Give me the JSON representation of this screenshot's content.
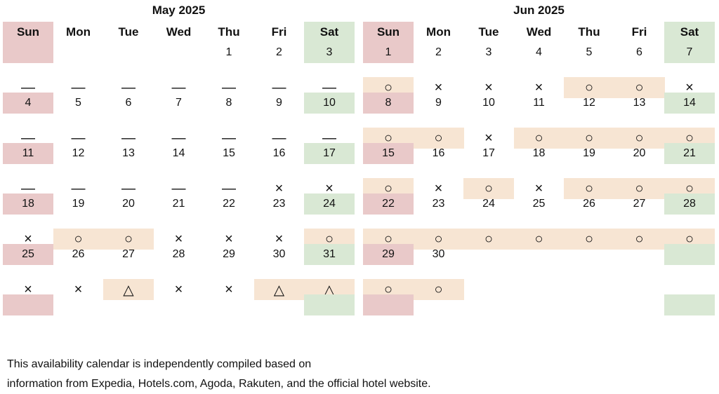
{
  "weekdays": [
    "Sun",
    "Mon",
    "Tue",
    "Wed",
    "Thu",
    "Fri",
    "Sat"
  ],
  "months": [
    {
      "title": "May 2025",
      "weeks": [
        {
          "days": [
            "",
            "",
            "",
            "",
            "1",
            "2",
            "3"
          ],
          "marks": [
            "—",
            "—",
            "—",
            "—",
            "—",
            "—",
            "—"
          ]
        },
        {
          "days": [
            "4",
            "5",
            "6",
            "7",
            "8",
            "9",
            "10"
          ],
          "marks": [
            "—",
            "—",
            "—",
            "—",
            "—",
            "—",
            "—"
          ]
        },
        {
          "days": [
            "11",
            "12",
            "13",
            "14",
            "15",
            "16",
            "17"
          ],
          "marks": [
            "—",
            "—",
            "—",
            "—",
            "—",
            "×",
            "×"
          ]
        },
        {
          "days": [
            "18",
            "19",
            "20",
            "21",
            "22",
            "23",
            "24"
          ],
          "marks": [
            "×",
            "○",
            "○",
            "×",
            "×",
            "×",
            "○"
          ]
        },
        {
          "days": [
            "25",
            "26",
            "27",
            "28",
            "29",
            "30",
            "31"
          ],
          "marks": [
            "×",
            "×",
            "△",
            "×",
            "×",
            "△",
            "△"
          ]
        }
      ]
    },
    {
      "title": "Jun 2025",
      "weeks": [
        {
          "days": [
            "1",
            "2",
            "3",
            "4",
            "5",
            "6",
            "7"
          ],
          "marks": [
            "○",
            "×",
            "×",
            "×",
            "○",
            "○",
            "×"
          ]
        },
        {
          "days": [
            "8",
            "9",
            "10",
            "11",
            "12",
            "13",
            "14"
          ],
          "marks": [
            "○",
            "○",
            "×",
            "○",
            "○",
            "○",
            "○"
          ]
        },
        {
          "days": [
            "15",
            "16",
            "17",
            "18",
            "19",
            "20",
            "21"
          ],
          "marks": [
            "○",
            "×",
            "○",
            "×",
            "○",
            "○",
            "○"
          ]
        },
        {
          "days": [
            "22",
            "23",
            "24",
            "25",
            "26",
            "27",
            "28"
          ],
          "marks": [
            "○",
            "○",
            "○",
            "○",
            "○",
            "○",
            "○"
          ]
        },
        {
          "days": [
            "29",
            "30",
            "",
            "",
            "",
            "",
            ""
          ],
          "marks": [
            "○",
            "○",
            "",
            "",
            "",
            "",
            ""
          ]
        }
      ]
    }
  ],
  "footnote": [
    "This availability calendar is independently compiled based on",
    "information from Expedia, Hotels.com, Agoda, Rakuten, and the official hotel website."
  ],
  "colors": {
    "sunday": "#e9c9c9",
    "saturday": "#d9e8d4",
    "available": "#f7e5d3"
  }
}
